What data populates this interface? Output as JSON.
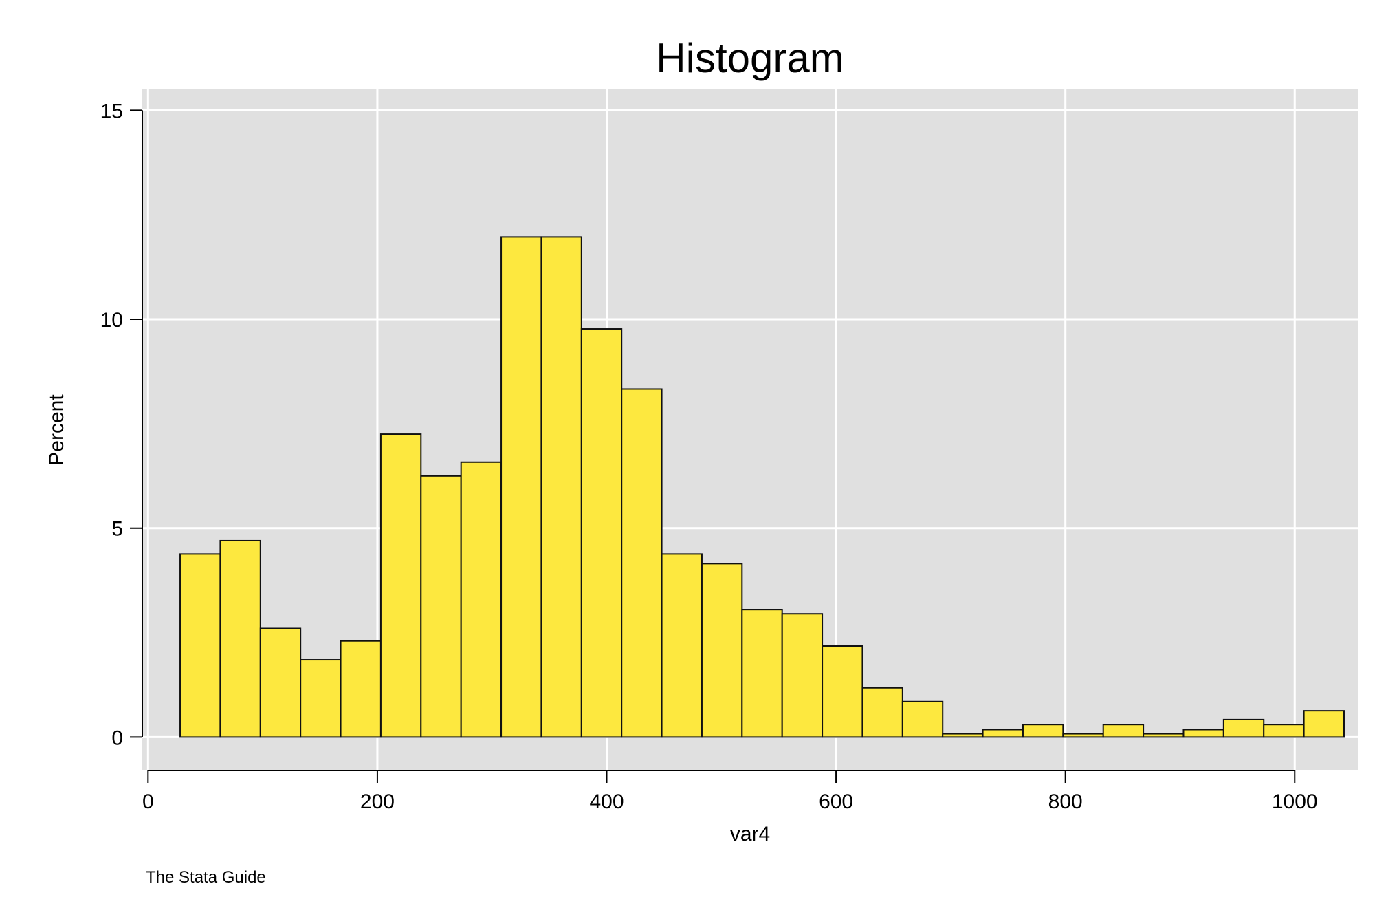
{
  "chart_data": {
    "type": "bar",
    "title": "Histogram",
    "xlabel": "var4",
    "ylabel": "Percent",
    "note": "The Stata Guide",
    "xlim": [
      -5,
      1055
    ],
    "ylim": [
      -0.8,
      15.5
    ],
    "xticks": [
      0,
      200,
      400,
      600,
      800,
      1000
    ],
    "xtick_labels": [
      "0",
      "200",
      "400",
      "600",
      "800",
      "1000"
    ],
    "yticks": [
      0,
      5,
      10,
      15
    ],
    "ytick_labels": [
      "0",
      "5",
      "10",
      "15"
    ],
    "grid": true,
    "bin_start": 28,
    "bin_width": 35,
    "bins": [
      {
        "x0": 28,
        "x1": 63,
        "value": 4.38
      },
      {
        "x0": 63,
        "x1": 98,
        "value": 4.7
      },
      {
        "x0": 98,
        "x1": 133,
        "value": 2.6
      },
      {
        "x0": 133,
        "x1": 168,
        "value": 1.85
      },
      {
        "x0": 168,
        "x1": 203,
        "value": 2.3
      },
      {
        "x0": 203,
        "x1": 238,
        "value": 7.25
      },
      {
        "x0": 238,
        "x1": 273,
        "value": 6.25
      },
      {
        "x0": 273,
        "x1": 308,
        "value": 6.58
      },
      {
        "x0": 308,
        "x1": 343,
        "value": 11.97
      },
      {
        "x0": 343,
        "x1": 378,
        "value": 11.97
      },
      {
        "x0": 378,
        "x1": 413,
        "value": 9.77
      },
      {
        "x0": 413,
        "x1": 448,
        "value": 8.33
      },
      {
        "x0": 448,
        "x1": 483,
        "value": 4.38
      },
      {
        "x0": 483,
        "x1": 518,
        "value": 4.15
      },
      {
        "x0": 518,
        "x1": 553,
        "value": 3.05
      },
      {
        "x0": 553,
        "x1": 588,
        "value": 2.95
      },
      {
        "x0": 588,
        "x1": 623,
        "value": 2.18
      },
      {
        "x0": 623,
        "x1": 658,
        "value": 1.18
      },
      {
        "x0": 658,
        "x1": 693,
        "value": 0.85
      },
      {
        "x0": 693,
        "x1": 728,
        "value": 0.08
      },
      {
        "x0": 728,
        "x1": 763,
        "value": 0.18
      },
      {
        "x0": 763,
        "x1": 798,
        "value": 0.3
      },
      {
        "x0": 798,
        "x1": 833,
        "value": 0.08
      },
      {
        "x0": 833,
        "x1": 868,
        "value": 0.3
      },
      {
        "x0": 868,
        "x1": 903,
        "value": 0.08
      },
      {
        "x0": 903,
        "x1": 938,
        "value": 0.18
      },
      {
        "x0": 938,
        "x1": 973,
        "value": 0.42
      },
      {
        "x0": 973,
        "x1": 1008,
        "value": 0.3
      },
      {
        "x0": 1008,
        "x1": 1043,
        "value": 0.63
      }
    ],
    "colors": {
      "bar_fill": "#fde83f",
      "bar_stroke": "#111111",
      "plot_bg": "#e0e0e0",
      "grid": "#ffffff",
      "axis": "#000000"
    }
  }
}
